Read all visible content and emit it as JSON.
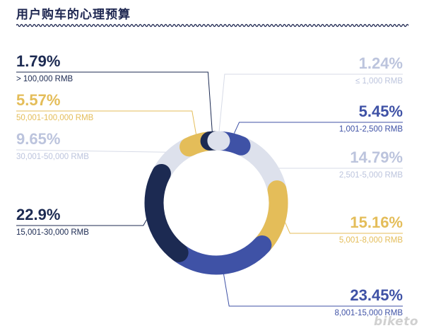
{
  "title": "用户购车的心理预算",
  "watermark": "biketo",
  "colors": {
    "navy": "#1d2650",
    "dark": "#1c2a52",
    "blue": "#3f52a6",
    "gold": "#e4bd59",
    "light": "#dde1ec",
    "lighttext": "#bcc4dd"
  },
  "chart_data": {
    "type": "pie",
    "title": "用户购车的心理预算",
    "unit": "%",
    "slices": [
      {
        "label": "≤ 1,000 RMB",
        "value": 1.24,
        "display": "1.24%",
        "color": "#dde1ec"
      },
      {
        "label": "1,001-2,500 RMB",
        "value": 5.45,
        "display": "5.45%",
        "color": "#3f52a6"
      },
      {
        "label": "2,501-5,000 RMB",
        "value": 14.79,
        "display": "14.79%",
        "color": "#dde1ec"
      },
      {
        "label": "5,001-8,000 RMB",
        "value": 15.16,
        "display": "15.16%",
        "color": "#e4bd59"
      },
      {
        "label": "8,001-15,000 RMB",
        "value": 23.45,
        "display": "23.45%",
        "color": "#3f52a6"
      },
      {
        "label": "15,001-30,000 RMB",
        "value": 22.9,
        "display": "22.9%",
        "color": "#1c2a52"
      },
      {
        "label": "30,001-50,000 RMB",
        "value": 9.65,
        "display": "9.65%",
        "color": "#dde1ec"
      },
      {
        "label": "50,001-100,000 RMB",
        "value": 5.57,
        "display": "5.57%",
        "color": "#e4bd59"
      },
      {
        "label": "> 100,000 RMB",
        "value": 1.79,
        "display": "1.79%",
        "color": "#1c2a52"
      }
    ]
  }
}
